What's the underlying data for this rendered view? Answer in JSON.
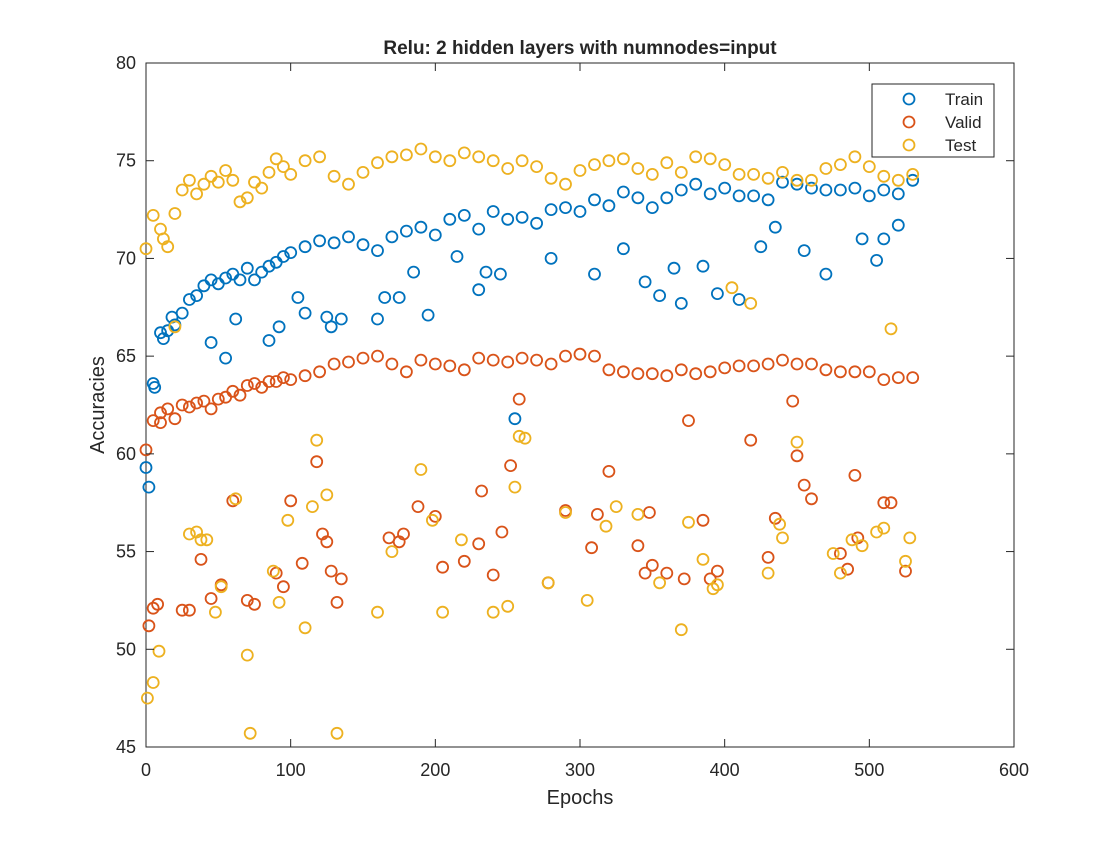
{
  "chart_data": {
    "type": "scatter",
    "title": "Relu: 2 hidden layers with numnodes=input",
    "xlabel": "Epochs",
    "ylabel": "Accuracies",
    "xlim": [
      0,
      600
    ],
    "ylim": [
      45,
      80
    ],
    "xticks": [
      0,
      100,
      200,
      300,
      400,
      500,
      600
    ],
    "yticks": [
      45,
      50,
      55,
      60,
      65,
      70,
      75,
      80
    ],
    "xtick_labels": [
      "0",
      "100",
      "200",
      "300",
      "400",
      "500",
      "600"
    ],
    "ytick_labels": [
      "45",
      "50",
      "55",
      "60",
      "65",
      "70",
      "75",
      "80"
    ],
    "grid": false,
    "legend_position": "top-right",
    "marker": "open-circle",
    "series": [
      {
        "name": "Train",
        "color": "#0072BD",
        "x": [
          0,
          5,
          10,
          15,
          20,
          25,
          30,
          35,
          40,
          45,
          50,
          55,
          60,
          65,
          70,
          75,
          80,
          85,
          90,
          95,
          100,
          110,
          120,
          130,
          140,
          150,
          160,
          170,
          180,
          190,
          200,
          210,
          220,
          230,
          240,
          250,
          260,
          270,
          280,
          290,
          300,
          310,
          320,
          330,
          340,
          350,
          360,
          370,
          380,
          390,
          400,
          410,
          420,
          430,
          440,
          450,
          460,
          470,
          480,
          490,
          500,
          510,
          520,
          530,
          2,
          6,
          12,
          18,
          45,
          55,
          62,
          85,
          92,
          105,
          110,
          125,
          128,
          135,
          160,
          165,
          175,
          185,
          195,
          215,
          230,
          235,
          245,
          255,
          280,
          310,
          330,
          345,
          355,
          365,
          370,
          385,
          395,
          410,
          425,
          435,
          455,
          470,
          495,
          505,
          510,
          520
        ],
        "y": [
          59.3,
          63.6,
          66.2,
          66.3,
          66.6,
          67.2,
          67.9,
          68.1,
          68.6,
          68.9,
          68.7,
          69.0,
          69.2,
          68.9,
          69.5,
          68.9,
          69.3,
          69.6,
          69.8,
          70.1,
          70.3,
          70.6,
          70.9,
          70.8,
          71.1,
          70.7,
          70.4,
          71.1,
          71.4,
          71.6,
          71.2,
          72.0,
          72.2,
          71.5,
          72.4,
          72.0,
          72.1,
          71.8,
          72.5,
          72.6,
          72.4,
          73.0,
          72.7,
          73.4,
          73.1,
          72.6,
          73.1,
          73.5,
          73.8,
          73.3,
          73.6,
          73.2,
          73.2,
          73.0,
          73.9,
          73.8,
          73.6,
          73.5,
          73.5,
          73.6,
          73.2,
          73.5,
          73.3,
          74.0,
          58.3,
          63.4,
          65.9,
          67.0,
          65.7,
          64.9,
          66.9,
          65.8,
          66.5,
          68.0,
          67.2,
          67.0,
          66.5,
          66.9,
          66.9,
          68.0,
          68.0,
          69.3,
          67.1,
          70.1,
          68.4,
          69.3,
          69.2,
          61.8,
          70.0,
          69.2,
          70.5,
          68.8,
          68.1,
          69.5,
          67.7,
          69.6,
          68.2,
          67.9,
          70.6,
          71.6,
          70.4,
          69.2,
          71.0,
          69.9,
          71.0,
          71.7
        ]
      },
      {
        "name": "Valid",
        "color": "#D95319",
        "x": [
          0,
          5,
          10,
          15,
          20,
          25,
          30,
          35,
          40,
          45,
          50,
          55,
          60,
          65,
          70,
          75,
          80,
          85,
          90,
          95,
          100,
          110,
          120,
          130,
          140,
          150,
          160,
          170,
          180,
          190,
          200,
          210,
          220,
          230,
          240,
          250,
          260,
          270,
          280,
          290,
          300,
          310,
          320,
          330,
          340,
          350,
          360,
          370,
          380,
          390,
          400,
          410,
          420,
          430,
          440,
          450,
          460,
          470,
          480,
          490,
          500,
          510,
          520,
          530,
          2,
          5,
          8,
          10,
          25,
          30,
          38,
          45,
          52,
          60,
          70,
          75,
          90,
          95,
          100,
          108,
          118,
          122,
          125,
          128,
          132,
          135,
          168,
          175,
          178,
          188,
          200,
          205,
          220,
          230,
          232,
          240,
          246,
          252,
          258,
          278,
          290,
          308,
          312,
          320,
          340,
          345,
          348,
          350,
          360,
          372,
          375,
          385,
          390,
          395,
          418,
          430,
          435,
          447,
          450,
          455,
          460,
          480,
          485,
          490,
          492,
          510,
          515,
          525
        ],
        "y": [
          60.2,
          61.7,
          62.1,
          62.3,
          61.8,
          62.5,
          62.4,
          62.6,
          62.7,
          62.3,
          62.8,
          62.9,
          63.2,
          63.0,
          63.5,
          63.6,
          63.4,
          63.7,
          63.7,
          63.9,
          63.8,
          64.0,
          64.2,
          64.6,
          64.7,
          64.9,
          65.0,
          64.6,
          64.2,
          64.8,
          64.6,
          64.5,
          64.3,
          64.9,
          64.8,
          64.7,
          64.9,
          64.8,
          64.6,
          65.0,
          65.1,
          65.0,
          64.3,
          64.2,
          64.1,
          64.1,
          64.0,
          64.3,
          64.1,
          64.2,
          64.4,
          64.5,
          64.5,
          64.6,
          64.8,
          64.6,
          64.6,
          64.3,
          64.2,
          64.2,
          64.2,
          63.8,
          63.9,
          63.9,
          51.2,
          52.1,
          52.3,
          61.6,
          52.0,
          52.0,
          54.6,
          52.6,
          53.3,
          57.6,
          52.5,
          52.3,
          53.9,
          53.2,
          57.6,
          54.4,
          59.6,
          55.9,
          55.5,
          54.0,
          52.4,
          53.6,
          55.7,
          55.5,
          55.9,
          57.3,
          56.8,
          54.2,
          54.5,
          55.4,
          58.1,
          53.8,
          56.0,
          59.4,
          62.8,
          53.4,
          57.1,
          55.2,
          56.9,
          59.1,
          55.3,
          53.9,
          57.0,
          54.3,
          53.9,
          53.6,
          61.7,
          56.6,
          53.6,
          54.0,
          60.7,
          54.7,
          56.7,
          62.7,
          59.9,
          58.4,
          57.7,
          54.9,
          54.1,
          58.9,
          55.7,
          57.5,
          57.5,
          54.0
        ]
      },
      {
        "name": "Test",
        "color": "#EDB120",
        "x": [
          0,
          5,
          10,
          15,
          20,
          25,
          30,
          35,
          40,
          45,
          50,
          55,
          60,
          65,
          70,
          75,
          80,
          85,
          90,
          95,
          100,
          110,
          120,
          130,
          140,
          150,
          160,
          170,
          180,
          190,
          200,
          210,
          220,
          230,
          240,
          250,
          260,
          270,
          280,
          290,
          300,
          310,
          320,
          330,
          340,
          350,
          360,
          370,
          380,
          390,
          400,
          410,
          420,
          430,
          440,
          450,
          460,
          470,
          480,
          490,
          500,
          510,
          520,
          530,
          1,
          5,
          9,
          12,
          20,
          30,
          35,
          38,
          42,
          48,
          52,
          62,
          70,
          72,
          88,
          92,
          98,
          110,
          115,
          118,
          125,
          132,
          160,
          170,
          190,
          198,
          205,
          218,
          240,
          250,
          255,
          258,
          262,
          278,
          290,
          305,
          318,
          325,
          340,
          355,
          370,
          375,
          385,
          392,
          395,
          405,
          418,
          430,
          438,
          440,
          450,
          475,
          480,
          488,
          495,
          505,
          510,
          515,
          525,
          528
        ],
        "y": [
          70.5,
          72.2,
          71.5,
          70.6,
          72.3,
          73.5,
          74.0,
          73.3,
          73.8,
          74.2,
          73.9,
          74.5,
          74.0,
          72.9,
          73.1,
          73.9,
          73.6,
          74.4,
          75.1,
          74.7,
          74.3,
          75.0,
          75.2,
          74.2,
          73.8,
          74.4,
          74.9,
          75.2,
          75.3,
          75.6,
          75.2,
          75.0,
          75.4,
          75.2,
          75.0,
          74.6,
          75.0,
          74.7,
          74.1,
          73.8,
          74.5,
          74.8,
          75.0,
          75.1,
          74.6,
          74.3,
          74.9,
          74.4,
          75.2,
          75.1,
          74.8,
          74.3,
          74.3,
          74.1,
          74.4,
          74.0,
          74.0,
          74.6,
          74.8,
          75.2,
          74.7,
          74.2,
          74.0,
          74.3,
          47.5,
          48.3,
          49.9,
          71.0,
          66.5,
          55.9,
          56.0,
          55.6,
          55.6,
          51.9,
          53.2,
          57.7,
          49.7,
          45.7,
          54.0,
          52.4,
          56.6,
          51.1,
          57.3,
          60.7,
          57.9,
          45.7,
          51.9,
          55.0,
          59.2,
          56.6,
          51.9,
          55.6,
          51.9,
          52.2,
          58.3,
          60.9,
          60.8,
          53.4,
          57.0,
          52.5,
          56.3,
          57.3,
          56.9,
          53.4,
          51.0,
          56.5,
          54.6,
          53.1,
          53.3,
          68.5,
          67.7,
          53.9,
          56.4,
          55.7,
          60.6,
          54.9,
          53.9,
          55.6,
          55.3,
          56.0,
          56.2,
          66.4,
          54.5,
          55.7
        ]
      }
    ]
  }
}
